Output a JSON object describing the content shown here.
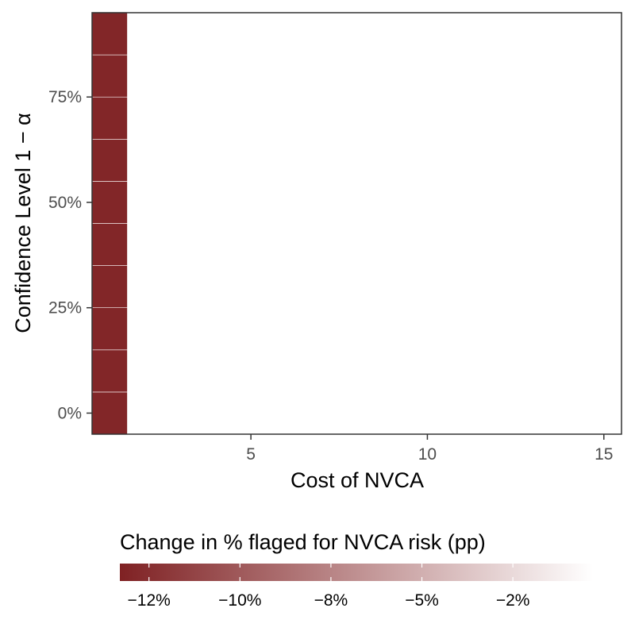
{
  "chart_data": {
    "type": "heatmap",
    "xlabel": "Cost of NVCA",
    "ylabel": "Confidence Level 1 − α",
    "xlim": [
      0.5,
      15.5
    ],
    "ylim": [
      -0.05,
      0.95
    ],
    "x_ticks": [
      {
        "value": 5,
        "label": "5"
      },
      {
        "value": 10,
        "label": "10"
      },
      {
        "value": 15,
        "label": "15"
      }
    ],
    "y_ticks": [
      {
        "value": 0,
        "label": "0%"
      },
      {
        "value": 0.25,
        "label": "25%"
      },
      {
        "value": 0.5,
        "label": "50%"
      },
      {
        "value": 0.75,
        "label": "75%"
      }
    ],
    "tile_width": 1,
    "tile_height": 0.1,
    "tiles": [
      {
        "x": 1,
        "y": 0.0,
        "value": -13.0
      },
      {
        "x": 1,
        "y": 0.1,
        "value": -13.0
      },
      {
        "x": 1,
        "y": 0.2,
        "value": -13.0
      },
      {
        "x": 1,
        "y": 0.3,
        "value": -13.0
      },
      {
        "x": 1,
        "y": 0.4,
        "value": -13.0
      },
      {
        "x": 1,
        "y": 0.5,
        "value": -13.0
      },
      {
        "x": 1,
        "y": 0.6,
        "value": -13.0
      },
      {
        "x": 1,
        "y": 0.7,
        "value": -13.0
      },
      {
        "x": 1,
        "y": 0.8,
        "value": -13.0
      },
      {
        "x": 1,
        "y": 0.9,
        "value": -13.0
      }
    ],
    "legend": {
      "title": "Change in % flaged for NVCA risk (pp)",
      "position": "bottom",
      "range": [
        -13.3,
        -0.3
      ],
      "low_color": "#7f2123",
      "high_color": "#ffffff",
      "ticks": [
        {
          "value": -12.5,
          "label": "−12%"
        },
        {
          "value": -10,
          "label": "−10%"
        },
        {
          "value": -7.5,
          "label": "−8%"
        },
        {
          "value": -5,
          "label": "−5%"
        },
        {
          "value": -2.5,
          "label": "−2%"
        }
      ]
    }
  }
}
